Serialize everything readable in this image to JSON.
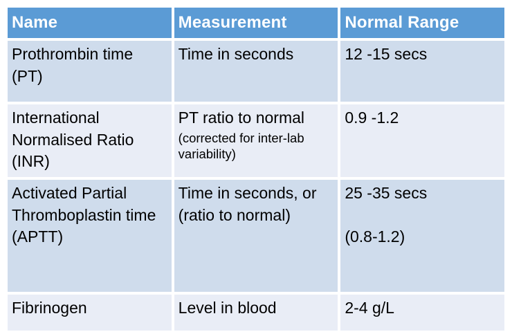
{
  "table": {
    "header": {
      "name": "Name",
      "measurement": "Measurement",
      "normal_range": "Normal Range"
    },
    "rows": [
      {
        "name": "Prothrombin time (PT)",
        "measurement": "Time in seconds",
        "normal_range": "12 -15 secs"
      },
      {
        "name": "International Normalised Ratio (INR)",
        "measurement": "PT ratio to normal",
        "measurement_note": "(corrected for inter-lab variability)",
        "normal_range": "0.9 -1.2"
      },
      {
        "name": "Activated Partial Thromboplastin time (APTT)",
        "measurement": "Time in seconds, or (ratio to normal)",
        "normal_range": "25 -35 secs",
        "normal_range_secondary": "(0.8-1.2)"
      },
      {
        "name": "Fibrinogen",
        "measurement": "Level in blood",
        "normal_range": "2-4 g/L"
      }
    ],
    "colors": {
      "header_bg": "#5b9bd5",
      "header_text": "#ffffff",
      "row_band_dark_bg": "#cfdcec",
      "row_band_light_bg": "#e9edf6",
      "body_text": "#000000",
      "grid_gap": "#ffffff"
    }
  }
}
